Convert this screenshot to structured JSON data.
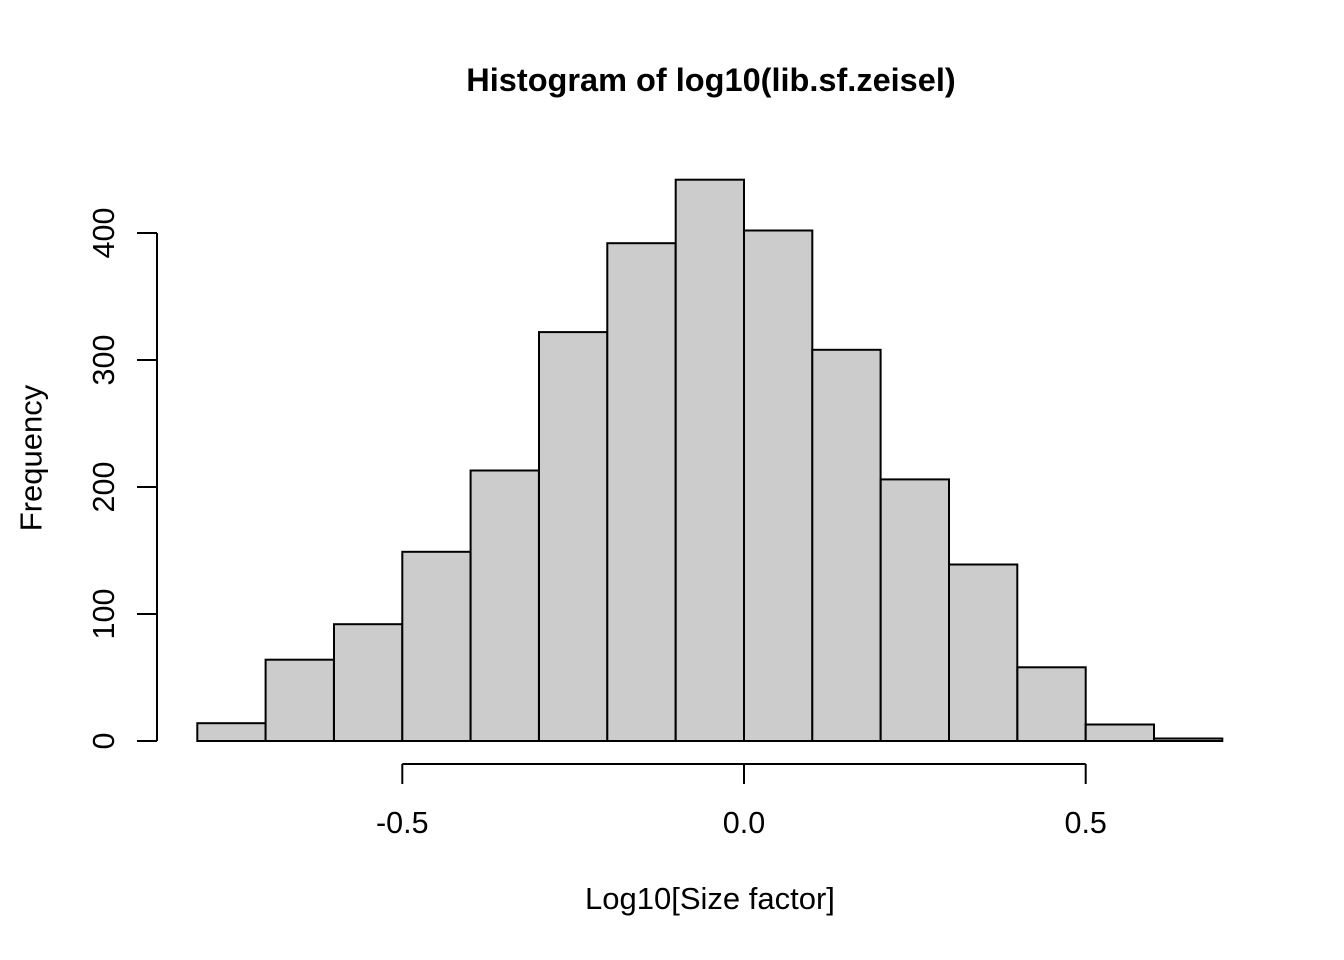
{
  "chart_data": {
    "type": "bar",
    "subtype": "histogram",
    "title": "Histogram of log10(lib.sf.zeisel)",
    "xlabel": "Log10[Size factor]",
    "ylabel": "Frequency",
    "bin_start": -0.8,
    "bin_width": 0.1,
    "bin_edges": [
      -0.8,
      -0.7,
      -0.6,
      -0.5,
      -0.4,
      -0.3,
      -0.2,
      -0.1,
      0.0,
      0.1,
      0.2,
      0.3,
      0.4,
      0.5,
      0.6,
      0.7
    ],
    "counts": [
      14,
      64,
      92,
      149,
      213,
      322,
      392,
      442,
      402,
      308,
      206,
      139,
      58,
      13,
      2
    ],
    "x_ticks": [
      -0.5,
      0.0,
      0.5
    ],
    "x_tick_labels": [
      "-0.5",
      "0.0",
      "0.5"
    ],
    "y_ticks": [
      0,
      100,
      200,
      300,
      400
    ],
    "y_tick_labels": [
      "0",
      "100",
      "200",
      "300",
      "400"
    ],
    "xlim": [
      -0.8,
      0.7
    ],
    "ylim": [
      0,
      442
    ],
    "grid": false,
    "legend": false,
    "bar_fill": "#CCCCCC",
    "bar_stroke": "#000000",
    "axis_color": "#000000",
    "text_color": "#000000",
    "background": "#FFFFFF"
  }
}
